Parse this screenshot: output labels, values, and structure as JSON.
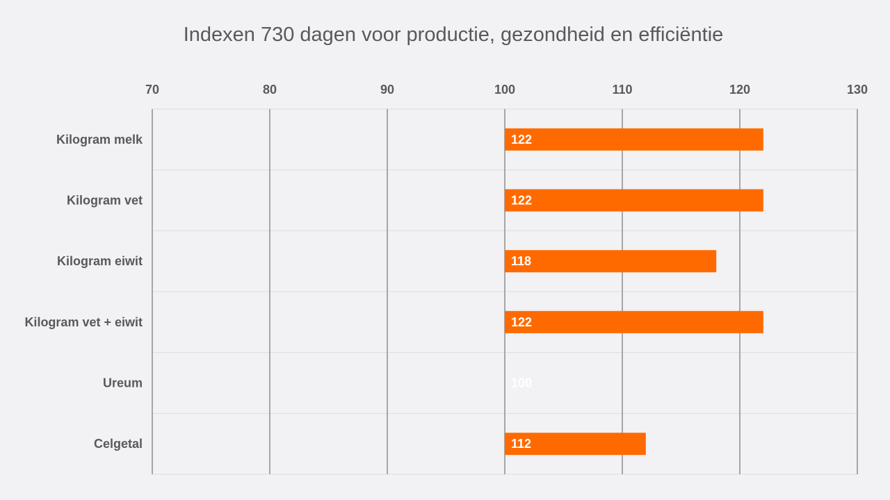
{
  "chart_data": {
    "type": "bar",
    "orientation": "horizontal",
    "title": "Indexen 730 dagen voor productie, gezondheid en efficiëntie",
    "xlabel": "",
    "ylabel": "",
    "categories": [
      "Kilogram melk",
      "Kilogram vet",
      "Kilogram eiwit",
      "Kilogram vet + eiwit",
      "Ureum",
      "Celgetal"
    ],
    "values": [
      122,
      122,
      118,
      122,
      100,
      112
    ],
    "baseline": 100,
    "xlim": [
      70,
      130
    ],
    "x_ticks": [
      70,
      80,
      90,
      100,
      110,
      120,
      130
    ],
    "x_axis_position": "top",
    "grid": true,
    "legend": "none",
    "bar_color": "#ff6a00",
    "data_label_color": "#ffffff"
  }
}
